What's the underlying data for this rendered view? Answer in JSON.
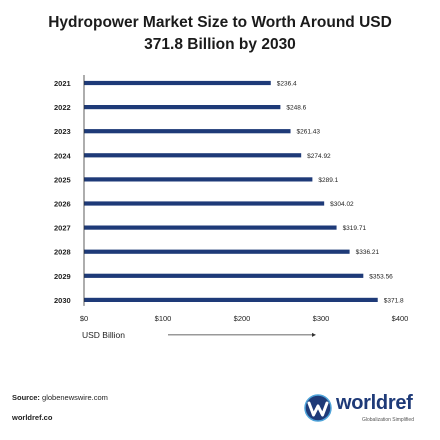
{
  "chart_data": {
    "type": "bar",
    "orientation": "horizontal",
    "title_line1": "Hydropower Market Size to Worth Around USD",
    "title_line2": "371.8 Billion by 2030",
    "categories": [
      "2021",
      "2022",
      "2023",
      "2024",
      "2025",
      "2026",
      "2027",
      "2028",
      "2029",
      "2030"
    ],
    "values": [
      236.4,
      248.6,
      261.43,
      274.92,
      289.1,
      304.02,
      319.71,
      336.21,
      353.56,
      371.8
    ],
    "value_labels": [
      "$236.4",
      "$248.6",
      "$261.43",
      "$274.92",
      "$289.1",
      "$304.02",
      "$319.71",
      "$336.21",
      "$353.56",
      "$371.8"
    ],
    "x_ticks": [
      0,
      100,
      200,
      300,
      400
    ],
    "x_tick_labels": [
      "$0",
      "$100",
      "$200",
      "$300",
      "$400"
    ],
    "xlabel": "USD Billion",
    "xlim": [
      0,
      400
    ],
    "bar_color": "#1e3a78",
    "grid": false
  },
  "footer": {
    "source_label": "Source:",
    "source_value": "globenewswire.com",
    "site": "worldref.co"
  },
  "logo": {
    "name": "worldref",
    "tagline": "Globalization Simplified",
    "color": "#1e3a78"
  }
}
